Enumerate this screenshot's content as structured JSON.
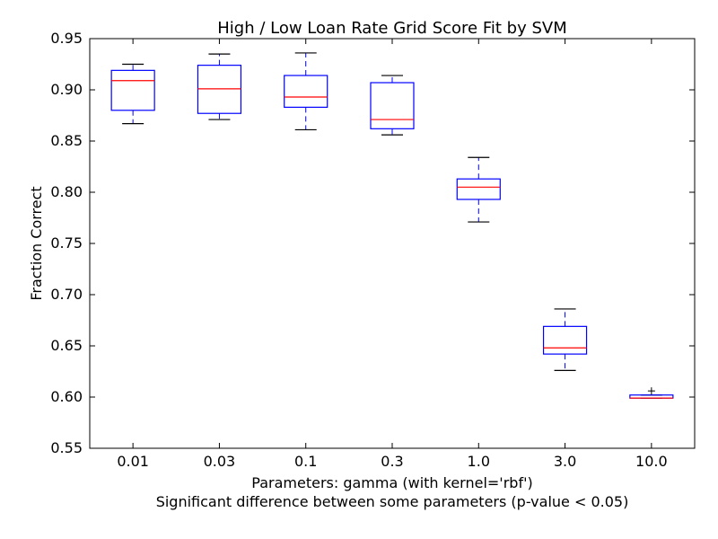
{
  "chart_data": {
    "type": "boxplot",
    "title": "High / Low Loan Rate Grid Score Fit by SVM",
    "xlabel": "Parameters: gamma (with kernel='rbf')",
    "xlabel_line2": "Significant difference between some parameters (p-value < 0.05)",
    "ylabel": "Fraction Correct",
    "ylim": [
      0.55,
      0.95
    ],
    "yticks": [
      0.55,
      0.6,
      0.65,
      0.7,
      0.75,
      0.8,
      0.85,
      0.9,
      0.95
    ],
    "ytick_labels": [
      "0.55",
      "0.60",
      "0.65",
      "0.70",
      "0.75",
      "0.80",
      "0.85",
      "0.90",
      "0.95"
    ],
    "categories": [
      "0.01",
      "0.03",
      "0.1",
      "0.3",
      "1.0",
      "3.0",
      "10.0"
    ],
    "boxes": [
      {
        "label": "0.01",
        "whisker_low": 0.867,
        "q1": 0.88,
        "median": 0.909,
        "q3": 0.919,
        "whisker_high": 0.925,
        "outliers": []
      },
      {
        "label": "0.03",
        "whisker_low": 0.871,
        "q1": 0.877,
        "median": 0.901,
        "q3": 0.924,
        "whisker_high": 0.935,
        "outliers": []
      },
      {
        "label": "0.1",
        "whisker_low": 0.861,
        "q1": 0.883,
        "median": 0.893,
        "q3": 0.914,
        "whisker_high": 0.936,
        "outliers": []
      },
      {
        "label": "0.3",
        "whisker_low": 0.856,
        "q1": 0.862,
        "median": 0.871,
        "q3": 0.907,
        "whisker_high": 0.914,
        "outliers": []
      },
      {
        "label": "1.0",
        "whisker_low": 0.771,
        "q1": 0.793,
        "median": 0.805,
        "q3": 0.813,
        "whisker_high": 0.834,
        "outliers": []
      },
      {
        "label": "3.0",
        "whisker_low": 0.626,
        "q1": 0.642,
        "median": 0.648,
        "q3": 0.669,
        "whisker_high": 0.686,
        "outliers": []
      },
      {
        "label": "10.0",
        "whisker_low": 0.599,
        "q1": 0.599,
        "median": 0.599,
        "q3": 0.602,
        "whisker_high": 0.602,
        "outliers": [
          0.606
        ]
      }
    ],
    "colors": {
      "box": "#0000ff",
      "whisker": "#0000ff",
      "cap": "#000000",
      "median": "#ff0000",
      "outlier": "#000000",
      "axes": "#000000"
    }
  }
}
